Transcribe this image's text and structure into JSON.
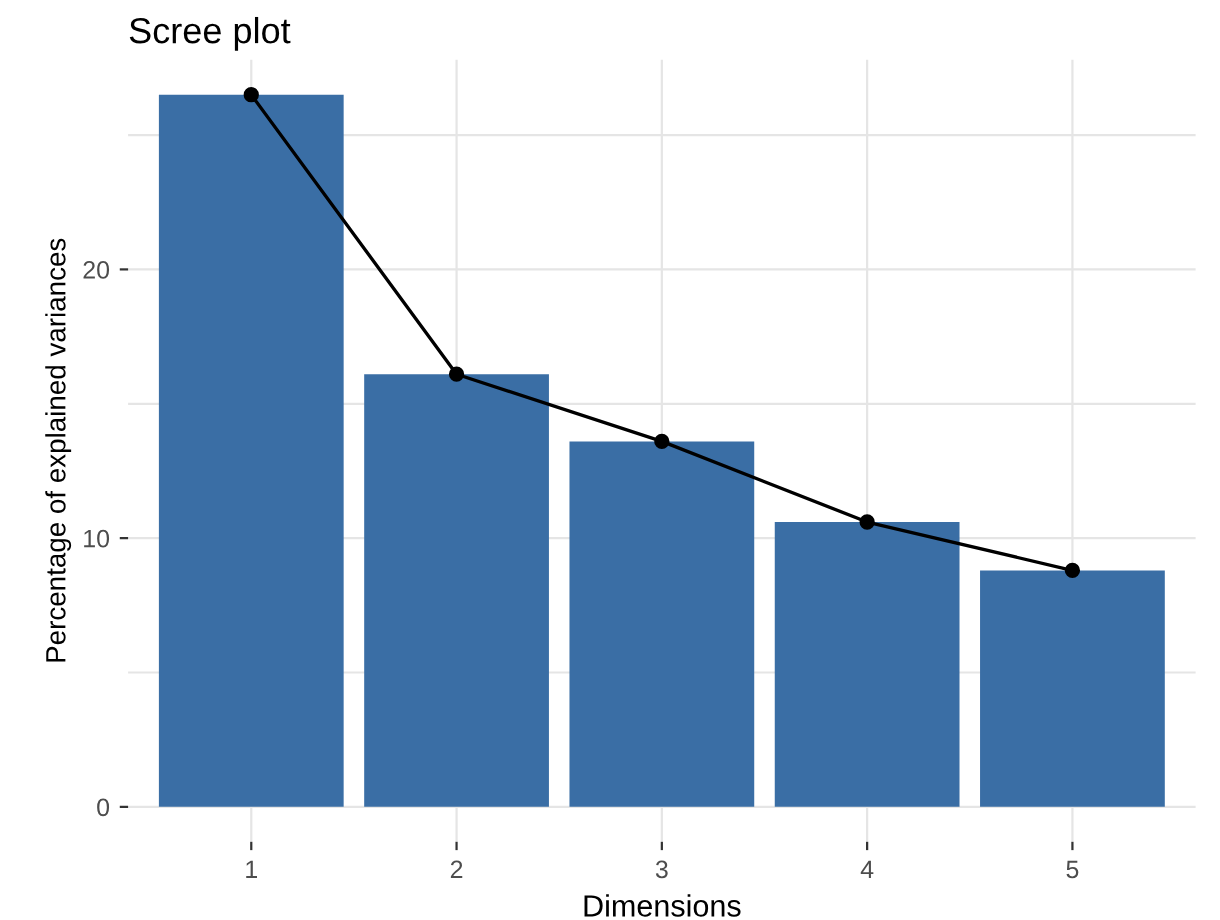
{
  "chart_data": {
    "type": "bar",
    "title": "Scree plot",
    "xlabel": "Dimensions",
    "ylabel": "Percentage of explained variances",
    "categories": [
      "1",
      "2",
      "3",
      "4",
      "5"
    ],
    "series": [
      {
        "color": "#3a6ea5",
        "values": [
          26.5,
          16.1,
          13.6,
          10.6,
          8.8
        ]
      },
      {
        "type": "line",
        "color": "#000000",
        "values": [
          26.5,
          16.1,
          13.6,
          10.6,
          8.8
        ],
        "marker": "circle",
        "line_style": "solid"
      }
    ],
    "ylim": [
      -1.3,
      27.8
    ],
    "yticks": [
      0,
      {
        "value": 5,
        "label": null
      },
      10,
      {
        "value": 15,
        "label": null
      },
      20,
      {
        "value": 25,
        "label": null
      }
    ],
    "grid": true,
    "legend": false
  }
}
